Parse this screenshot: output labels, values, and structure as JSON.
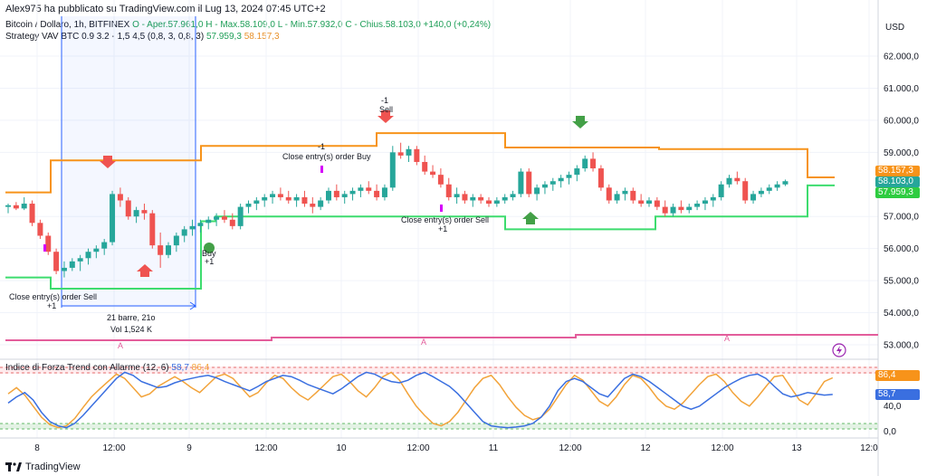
{
  "header": {
    "published": "Alex975 ha pubblicato su TradingView.com il Lug 13, 2024 07:45 UTC+2"
  },
  "legend": {
    "symbol": "Bitcoin / Dollaro, 1h, BITFINEX",
    "ohlc": "O - Aper.57.961,0  H - Max.58.109,0  L - Min.57.932,0  C - Chius.58.103,0  +140,0 (+0,24%)",
    "strategy_name": "Strategy VAV BTC 0.9 3.2 - 1,5 4,5 (0,8, 3, 0,8, 3)",
    "strategy_val1": "57.959,3",
    "strategy_val2": "58.157,3"
  },
  "price_axis": {
    "currency": "USD",
    "ticks": [
      "62.000,0",
      "61.000,0",
      "60.000,0",
      "59.000,0",
      "57.000,0",
      "56.000,0",
      "55.000,0",
      "54.000,0",
      "53.000,0"
    ],
    "tag_orange": "58.157,3",
    "tag_blue": "58.103,0",
    "tag_green": "57.959,3"
  },
  "osc_axis": {
    "ticks": [
      "40,0",
      "0,0"
    ],
    "tag_orange": "86,4",
    "tag_blue": "58,7"
  },
  "oscillator": {
    "name": "Indice di Forza Trend con Allarme (12, 6)",
    "val1": "58,7",
    "val2": "86,4"
  },
  "time_axis": {
    "ticks": [
      "8",
      "12:00",
      "9",
      "12:00",
      "10",
      "12:00",
      "11",
      "12:00",
      "12",
      "12:00",
      "13",
      "12:0"
    ]
  },
  "annotations": {
    "close_sell_1": "Close entry(s) order Sell",
    "close_sell_1_qty": "+1",
    "close_buy": "Close entry(s) order Buy",
    "close_buy_qty": "-1",
    "sell_label": "Sell",
    "sell_qty": "-1",
    "close_sell_2": "Close entry(s) order Sell",
    "close_sell_2_qty": "+1",
    "buy_label": "Buy",
    "buy_qty": "+1",
    "measure_bars": "21 barre, 21o",
    "measure_vol": "Vol 1,524 K",
    "alert_marker": "A"
  },
  "footer": {
    "brand": "TradingView"
  },
  "colors": {
    "up": "#26a69a",
    "down": "#ef5350",
    "orange_line": "#f7931a",
    "green_line": "#3ddc6e",
    "blue_measure": "#2962ff",
    "pink_line": "#e35d9b",
    "osc_blue": "#3a6fe0",
    "osc_orange": "#f2a33a"
  }
}
